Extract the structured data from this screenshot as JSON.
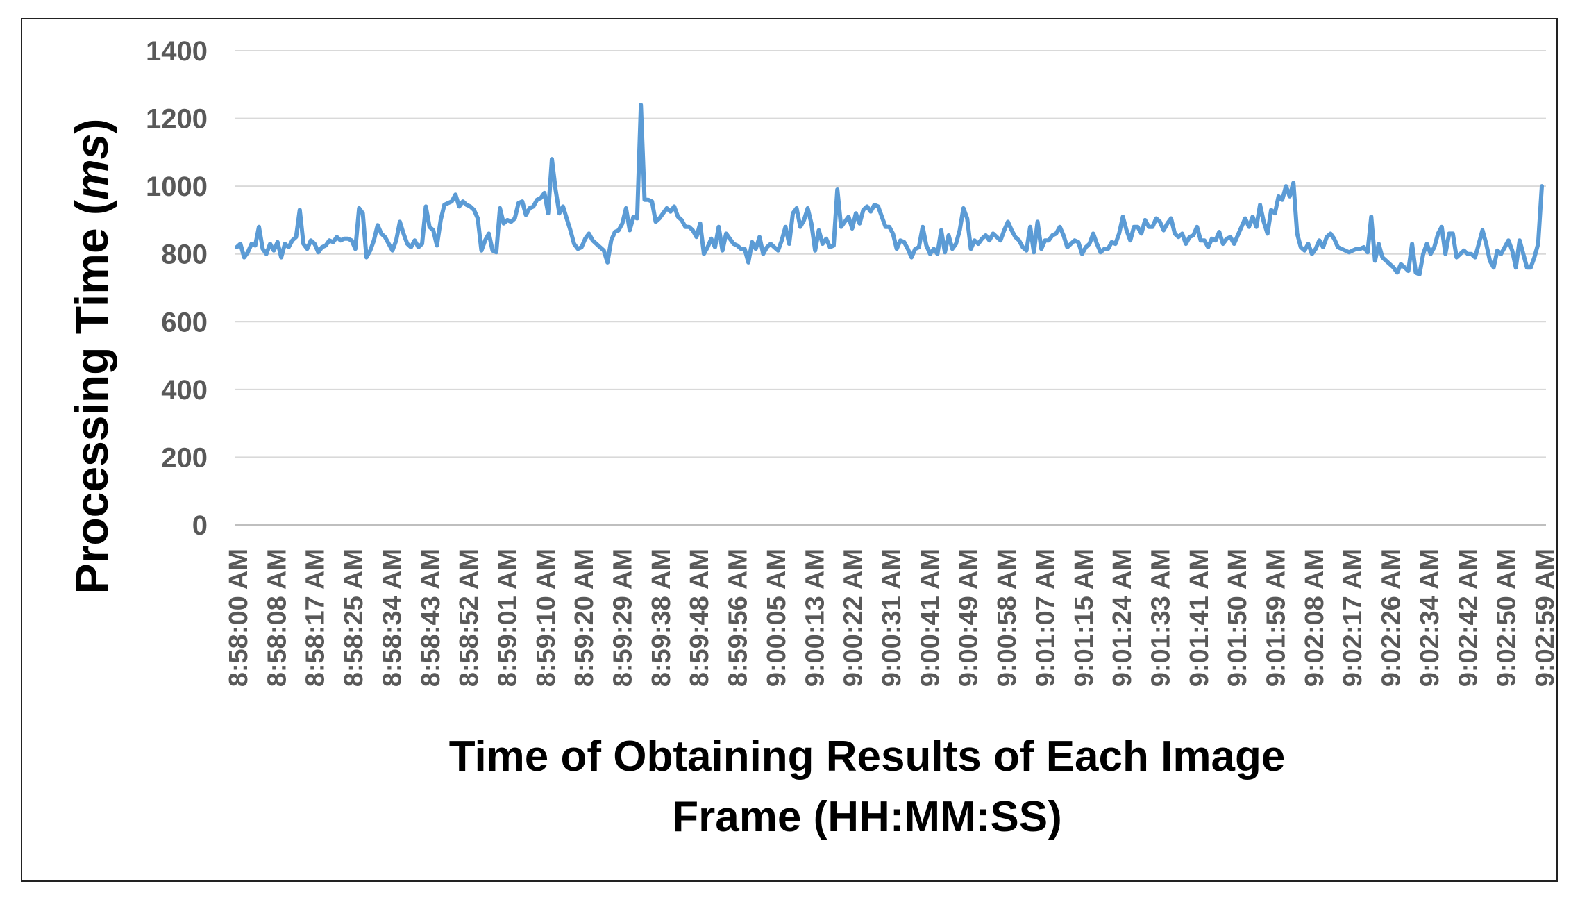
{
  "chart_data": {
    "type": "line",
    "title": "",
    "xlabel": "Time of Obtaining Results of Each Image Frame (HH:MM:SS)",
    "xlabel_lines": [
      "Time of Obtaining Results of Each Image",
      "Frame (HH:MM:SS)"
    ],
    "ylabel": "Processing Time (ms)",
    "ylabel_parts": {
      "prefix": "Processing Time (",
      "unit": "ms",
      "suffix": ")"
    },
    "ylim": [
      0,
      1400
    ],
    "yticks": [
      0,
      200,
      400,
      600,
      800,
      1000,
      1200,
      1400
    ],
    "grid": true,
    "legend": "none",
    "line_color": "#5b9bd5",
    "x_tick_labels": [
      "8:58:00 AM",
      "8:58:08 AM",
      "8:58:17 AM",
      "8:58:25 AM",
      "8:58:34 AM",
      "8:58:43 AM",
      "8:58:52 AM",
      "8:59:01 AM",
      "8:59:10 AM",
      "8:59:20 AM",
      "8:59:29 AM",
      "8:59:38 AM",
      "8:59:48 AM",
      "8:59:56 AM",
      "9:00:05 AM",
      "9:00:13 AM",
      "9:00:22 AM",
      "9:00:31 AM",
      "9:00:41 AM",
      "9:00:49 AM",
      "9:00:58 AM",
      "9:01:07 AM",
      "9:01:15 AM",
      "9:01:24 AM",
      "9:01:33 AM",
      "9:01:41 AM",
      "9:01:50 AM",
      "9:01:59 AM",
      "9:02:08 AM",
      "9:02:17 AM",
      "9:02:26 AM",
      "9:02:34 AM",
      "9:02:42 AM",
      "9:02:50 AM",
      "9:02:59 AM"
    ],
    "series": [
      {
        "values": [
          820,
          830,
          790,
          805,
          830,
          825,
          880,
          815,
          800,
          830,
          810,
          835,
          790,
          830,
          820,
          840,
          850,
          930,
          830,
          815,
          840,
          830,
          805,
          820,
          825,
          840,
          835,
          850,
          840,
          845,
          845,
          840,
          815,
          935,
          920,
          790,
          810,
          840,
          885,
          860,
          850,
          830,
          810,
          840,
          895,
          860,
          830,
          820,
          840,
          820,
          830,
          940,
          880,
          870,
          825,
          900,
          945,
          950,
          955,
          975,
          940,
          955,
          945,
          940,
          930,
          905,
          810,
          840,
          860,
          810,
          805,
          935,
          890,
          900,
          895,
          905,
          950,
          955,
          915,
          935,
          940,
          960,
          965,
          980,
          920,
          1080,
          990,
          920,
          940,
          905,
          870,
          830,
          815,
          820,
          845,
          860,
          840,
          830,
          820,
          810,
          775,
          840,
          865,
          870,
          890,
          935,
          870,
          910,
          905,
          1240,
          960,
          960,
          955,
          895,
          905,
          920,
          935,
          925,
          940,
          910,
          900,
          880,
          880,
          870,
          850,
          890,
          800,
          820,
          845,
          820,
          880,
          810,
          860,
          845,
          830,
          825,
          815,
          815,
          775,
          835,
          815,
          850,
          800,
          820,
          830,
          820,
          810,
          840,
          880,
          830,
          920,
          935,
          880,
          900,
          935,
          890,
          810,
          870,
          830,
          845,
          820,
          825,
          990,
          880,
          895,
          910,
          875,
          920,
          890,
          930,
          940,
          925,
          945,
          940,
          910,
          880,
          880,
          860,
          815,
          840,
          835,
          815,
          790,
          815,
          820,
          880,
          825,
          800,
          815,
          800,
          870,
          805,
          855,
          815,
          830,
          870,
          935,
          905,
          815,
          840,
          830,
          845,
          855,
          840,
          860,
          850,
          840,
          870,
          895,
          870,
          850,
          840,
          820,
          810,
          880,
          805,
          895,
          815,
          840,
          840,
          855,
          860,
          880,
          855,
          820,
          830,
          840,
          835,
          800,
          820,
          830,
          860,
          830,
          805,
          815,
          815,
          835,
          830,
          860,
          910,
          870,
          840,
          880,
          880,
          860,
          900,
          880,
          880,
          905,
          895,
          870,
          890,
          905,
          860,
          850,
          860,
          830,
          850,
          855,
          880,
          840,
          840,
          820,
          845,
          840,
          865,
          830,
          845,
          850,
          830,
          855,
          880,
          905,
          880,
          910,
          880,
          945,
          895,
          860,
          930,
          920,
          970,
          960,
          1000,
          970,
          1010,
          860,
          820,
          810,
          830,
          800,
          815,
          840,
          820,
          850,
          860,
          845,
          820,
          815,
          810,
          805,
          810,
          815,
          815,
          820,
          805,
          910,
          780,
          830,
          790,
          780,
          770,
          760,
          745,
          770,
          760,
          750,
          830,
          745,
          740,
          800,
          830,
          800,
          820,
          860,
          880,
          800,
          860,
          860,
          790,
          800,
          810,
          800,
          800,
          790,
          830,
          870,
          830,
          780,
          760,
          810,
          800,
          820,
          840,
          810,
          760,
          840,
          800,
          760,
          760,
          790,
          830,
          1000
        ]
      }
    ]
  }
}
